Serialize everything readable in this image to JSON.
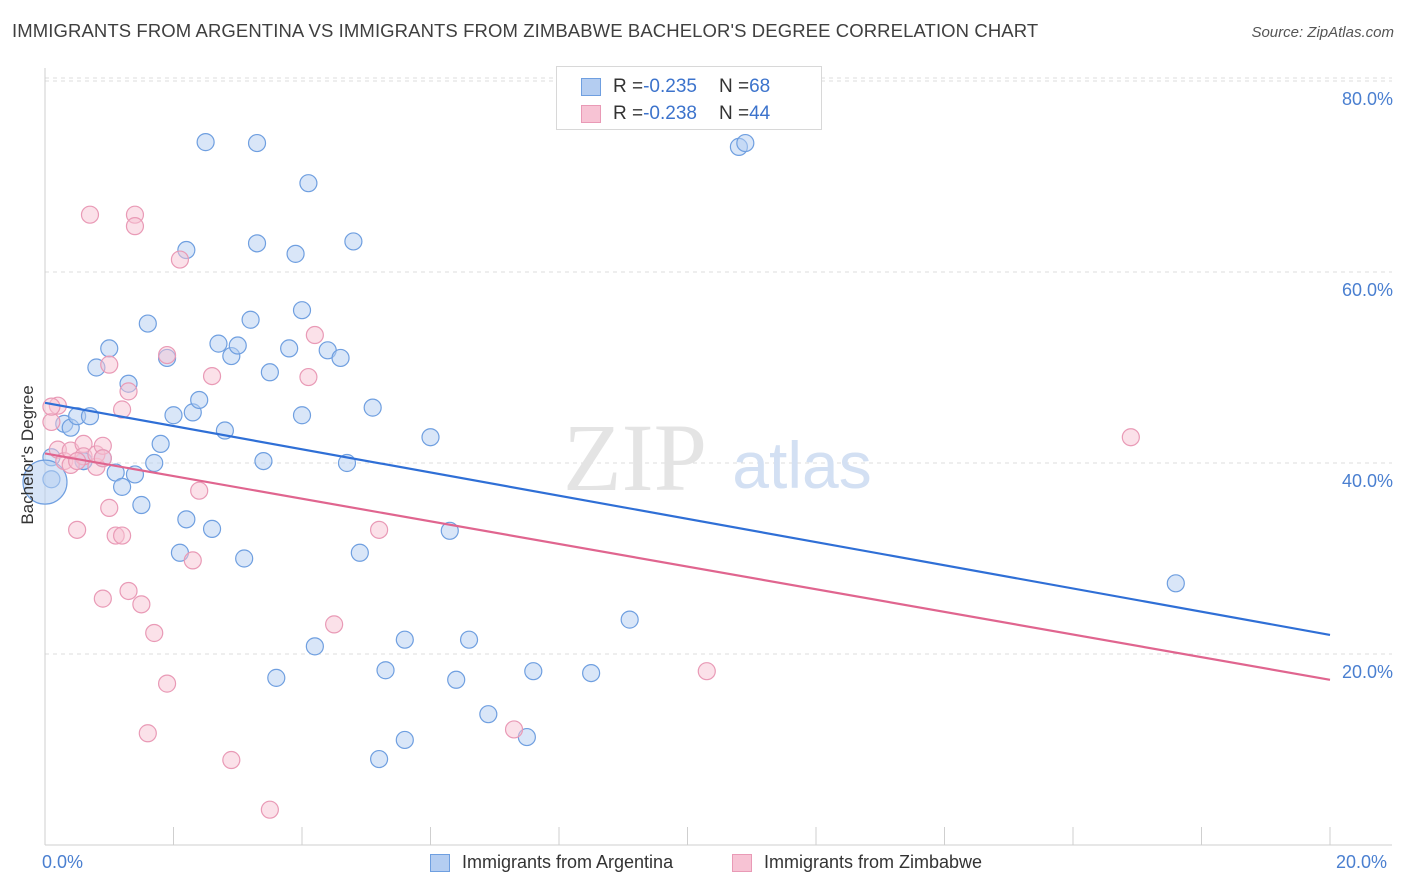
{
  "title": "IMMIGRANTS FROM ARGENTINA VS IMMIGRANTS FROM ZIMBABWE BACHELOR'S DEGREE CORRELATION CHART",
  "source": "Source: ZipAtlas.com",
  "watermark": {
    "zip": "ZIP",
    "atlas": "atlas"
  },
  "legend_top": {
    "rows": [
      {
        "r_label": "R = ",
        "r_value": "-0.235",
        "n_label": "N = ",
        "n_value": "68"
      },
      {
        "r_label": "R = ",
        "r_value": "-0.238",
        "n_label": "N = ",
        "n_value": "44"
      }
    ]
  },
  "legend_bottom": [
    "Immigrants from Argentina",
    "Immigrants from Zimbabwe"
  ],
  "x_corner_labels": {
    "left": "0.0%",
    "right": "20.0%"
  },
  "chart_data": {
    "type": "scatter",
    "title": "IMMIGRANTS FROM ARGENTINA VS IMMIGRANTS FROM ZIMBABWE BACHELOR'S DEGREE CORRELATION CHART",
    "xlabel": "",
    "ylabel": "Bachelor's Degree",
    "xlim": [
      0,
      20
    ],
    "ylim": [
      0,
      82
    ],
    "y_ticks": [
      {
        "value": 20,
        "label": "20.0%"
      },
      {
        "value": 40,
        "label": "40.0%"
      },
      {
        "value": 60,
        "label": "60.0%"
      },
      {
        "value": 80,
        "label": "80.0%"
      }
    ],
    "x_tick_values": [
      0,
      2,
      4,
      6,
      8,
      10,
      12,
      14,
      16,
      18,
      20
    ],
    "grid": true,
    "legend_position": "bottom",
    "series": [
      {
        "name": "Immigrants from Argentina",
        "color": "#6f9fe0",
        "fill": "#b4cdf1",
        "line_color": "#2f6fd6",
        "R": -0.235,
        "N": 68,
        "trend": [
          [
            0,
            46.3
          ],
          [
            20,
            22.0
          ]
        ],
        "points": [
          [
            0.1,
            38.3
          ],
          [
            0.1,
            40.6
          ],
          [
            0.3,
            44.1
          ],
          [
            0.4,
            43.7
          ],
          [
            0.5,
            44.9
          ],
          [
            0.6,
            40.2
          ],
          [
            0.7,
            44.9
          ],
          [
            0.8,
            50.0
          ],
          [
            0.9,
            40.5
          ],
          [
            1.0,
            52.0
          ],
          [
            1.1,
            39.0
          ],
          [
            1.2,
            37.5
          ],
          [
            1.3,
            48.3
          ],
          [
            1.4,
            38.8
          ],
          [
            1.5,
            35.6
          ],
          [
            1.6,
            54.6
          ],
          [
            1.7,
            40.0
          ],
          [
            1.8,
            42.0
          ],
          [
            1.9,
            51.0
          ],
          [
            2.0,
            45.0
          ],
          [
            2.1,
            30.6
          ],
          [
            2.2,
            34.1
          ],
          [
            2.2,
            62.3
          ],
          [
            2.3,
            45.3
          ],
          [
            2.4,
            46.6
          ],
          [
            2.5,
            73.6
          ],
          [
            2.6,
            33.1
          ],
          [
            2.7,
            52.5
          ],
          [
            2.8,
            43.4
          ],
          [
            2.9,
            51.2
          ],
          [
            3.0,
            52.3
          ],
          [
            3.1,
            30.0
          ],
          [
            3.2,
            55.0
          ],
          [
            3.3,
            73.5
          ],
          [
            3.3,
            63.0
          ],
          [
            3.4,
            40.2
          ],
          [
            3.5,
            49.5
          ],
          [
            3.6,
            17.5
          ],
          [
            3.8,
            52.0
          ],
          [
            3.9,
            61.9
          ],
          [
            4.0,
            45.0
          ],
          [
            4.0,
            56.0
          ],
          [
            4.1,
            69.3
          ],
          [
            4.2,
            20.8
          ],
          [
            4.4,
            51.8
          ],
          [
            4.6,
            51.0
          ],
          [
            4.7,
            40.0
          ],
          [
            4.8,
            63.2
          ],
          [
            4.9,
            30.6
          ],
          [
            5.1,
            45.8
          ],
          [
            5.2,
            9.0
          ],
          [
            5.3,
            18.3
          ],
          [
            5.6,
            11.0
          ],
          [
            5.6,
            21.5
          ],
          [
            6.0,
            42.7
          ],
          [
            6.3,
            32.9
          ],
          [
            6.4,
            17.3
          ],
          [
            6.6,
            21.5
          ],
          [
            6.9,
            13.7
          ],
          [
            7.5,
            11.3
          ],
          [
            7.6,
            18.2
          ],
          [
            8.5,
            18.0
          ],
          [
            9.1,
            23.6
          ],
          [
            10.8,
            73.1
          ],
          [
            10.9,
            73.5
          ],
          [
            17.6,
            27.4
          ],
          [
            0.0,
            38.0
          ],
          [
            0.6,
            40.2
          ]
        ]
      },
      {
        "name": "Immigrants from Zimbabwe",
        "color": "#e99ab6",
        "fill": "#f7c3d4",
        "line_color": "#e0658f",
        "R": -0.238,
        "N": 44,
        "trend": [
          [
            0,
            41.0
          ],
          [
            20,
            17.3
          ]
        ],
        "points": [
          [
            0.1,
            44.3
          ],
          [
            0.2,
            46.0
          ],
          [
            0.2,
            41.4
          ],
          [
            0.3,
            40.2
          ],
          [
            0.4,
            39.8
          ],
          [
            0.4,
            41.3
          ],
          [
            0.5,
            33.0
          ],
          [
            0.6,
            42.0
          ],
          [
            0.6,
            40.7
          ],
          [
            0.7,
            66.0
          ],
          [
            0.8,
            39.6
          ],
          [
            0.8,
            40.9
          ],
          [
            0.9,
            41.8
          ],
          [
            0.9,
            25.8
          ],
          [
            1.0,
            35.3
          ],
          [
            1.0,
            50.3
          ],
          [
            1.1,
            32.4
          ],
          [
            1.2,
            32.4
          ],
          [
            1.2,
            45.6
          ],
          [
            1.3,
            26.6
          ],
          [
            1.3,
            47.5
          ],
          [
            1.4,
            66.0
          ],
          [
            1.4,
            64.8
          ],
          [
            1.5,
            25.2
          ],
          [
            1.6,
            11.7
          ],
          [
            1.7,
            22.2
          ],
          [
            1.9,
            51.3
          ],
          [
            1.9,
            16.9
          ],
          [
            2.1,
            61.3
          ],
          [
            2.3,
            29.8
          ],
          [
            2.4,
            37.1
          ],
          [
            2.6,
            49.1
          ],
          [
            2.9,
            8.9
          ],
          [
            3.5,
            3.7
          ],
          [
            4.1,
            49.0
          ],
          [
            4.2,
            53.4
          ],
          [
            4.5,
            23.1
          ],
          [
            5.2,
            33.0
          ],
          [
            7.3,
            12.1
          ],
          [
            10.3,
            18.2
          ],
          [
            16.9,
            42.7
          ],
          [
            0.1,
            45.9
          ],
          [
            0.5,
            40.2
          ],
          [
            0.9,
            40.5
          ]
        ]
      }
    ]
  }
}
